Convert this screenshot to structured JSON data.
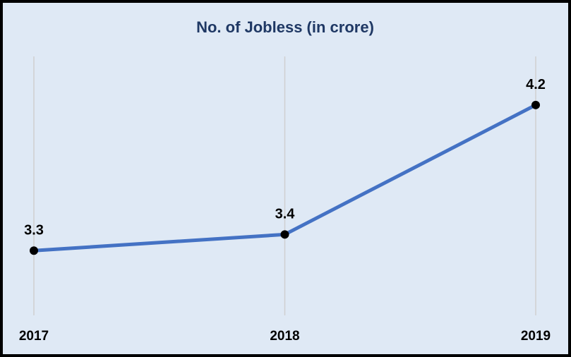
{
  "chart_data": {
    "type": "line",
    "title": "No. of Jobless (in crore)",
    "categories": [
      "2017",
      "2018",
      "2019"
    ],
    "values": [
      3.3,
      3.4,
      4.2
    ],
    "color": "#4472c4",
    "marker_color": "#000000",
    "ylim": [
      2.9,
      4.5
    ],
    "grid": true
  }
}
